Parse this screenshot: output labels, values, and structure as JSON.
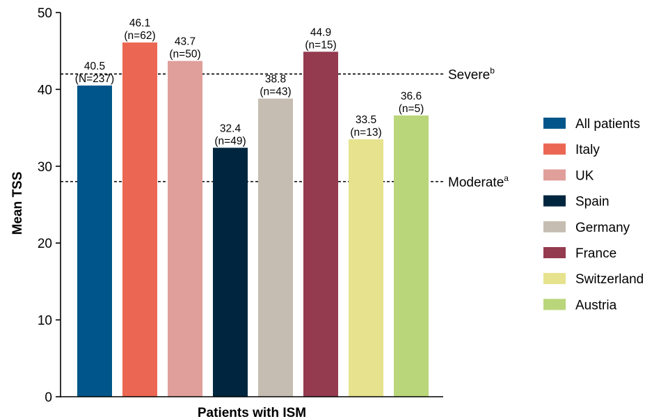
{
  "chart_data": {
    "type": "bar",
    "title": "",
    "xlabel": "Patients with ISM",
    "ylabel": "Mean TSS",
    "ylim": [
      0,
      50
    ],
    "yticks": [
      0,
      10,
      20,
      30,
      40,
      50
    ],
    "grid": false,
    "legend_position": "right",
    "bars": [
      {
        "name": "All patients",
        "value": 40.5,
        "value_label": "40.5",
        "n_label": "(N=237)",
        "color": "#00568a"
      },
      {
        "name": "Italy",
        "value": 46.1,
        "value_label": "46.1",
        "n_label": "(n=62)",
        "color": "#eb6753"
      },
      {
        "name": "UK",
        "value": 43.7,
        "value_label": "43.7",
        "n_label": "(n=50)",
        "color": "#e09f9a"
      },
      {
        "name": "Spain",
        "value": 32.4,
        "value_label": "32.4",
        "n_label": "(n=49)",
        "color": "#00263f"
      },
      {
        "name": "Germany",
        "value": 38.8,
        "value_label": "38.8",
        "n_label": "(n=43)",
        "color": "#c6bdb2"
      },
      {
        "name": "France",
        "value": 44.9,
        "value_label": "44.9",
        "n_label": "(n=15)",
        "color": "#943b50"
      },
      {
        "name": "Switzerland",
        "value": 33.5,
        "value_label": "33.5",
        "n_label": "(n=13)",
        "color": "#e6e28d"
      },
      {
        "name": "Austria",
        "value": 36.6,
        "value_label": "36.6",
        "n_label": "(n=5)",
        "color": "#b9d67a"
      }
    ],
    "reference_lines": [
      {
        "label": "Severe",
        "superscript": "b",
        "value": 42
      },
      {
        "label": "Moderate",
        "superscript": "a",
        "value": 28
      }
    ]
  }
}
